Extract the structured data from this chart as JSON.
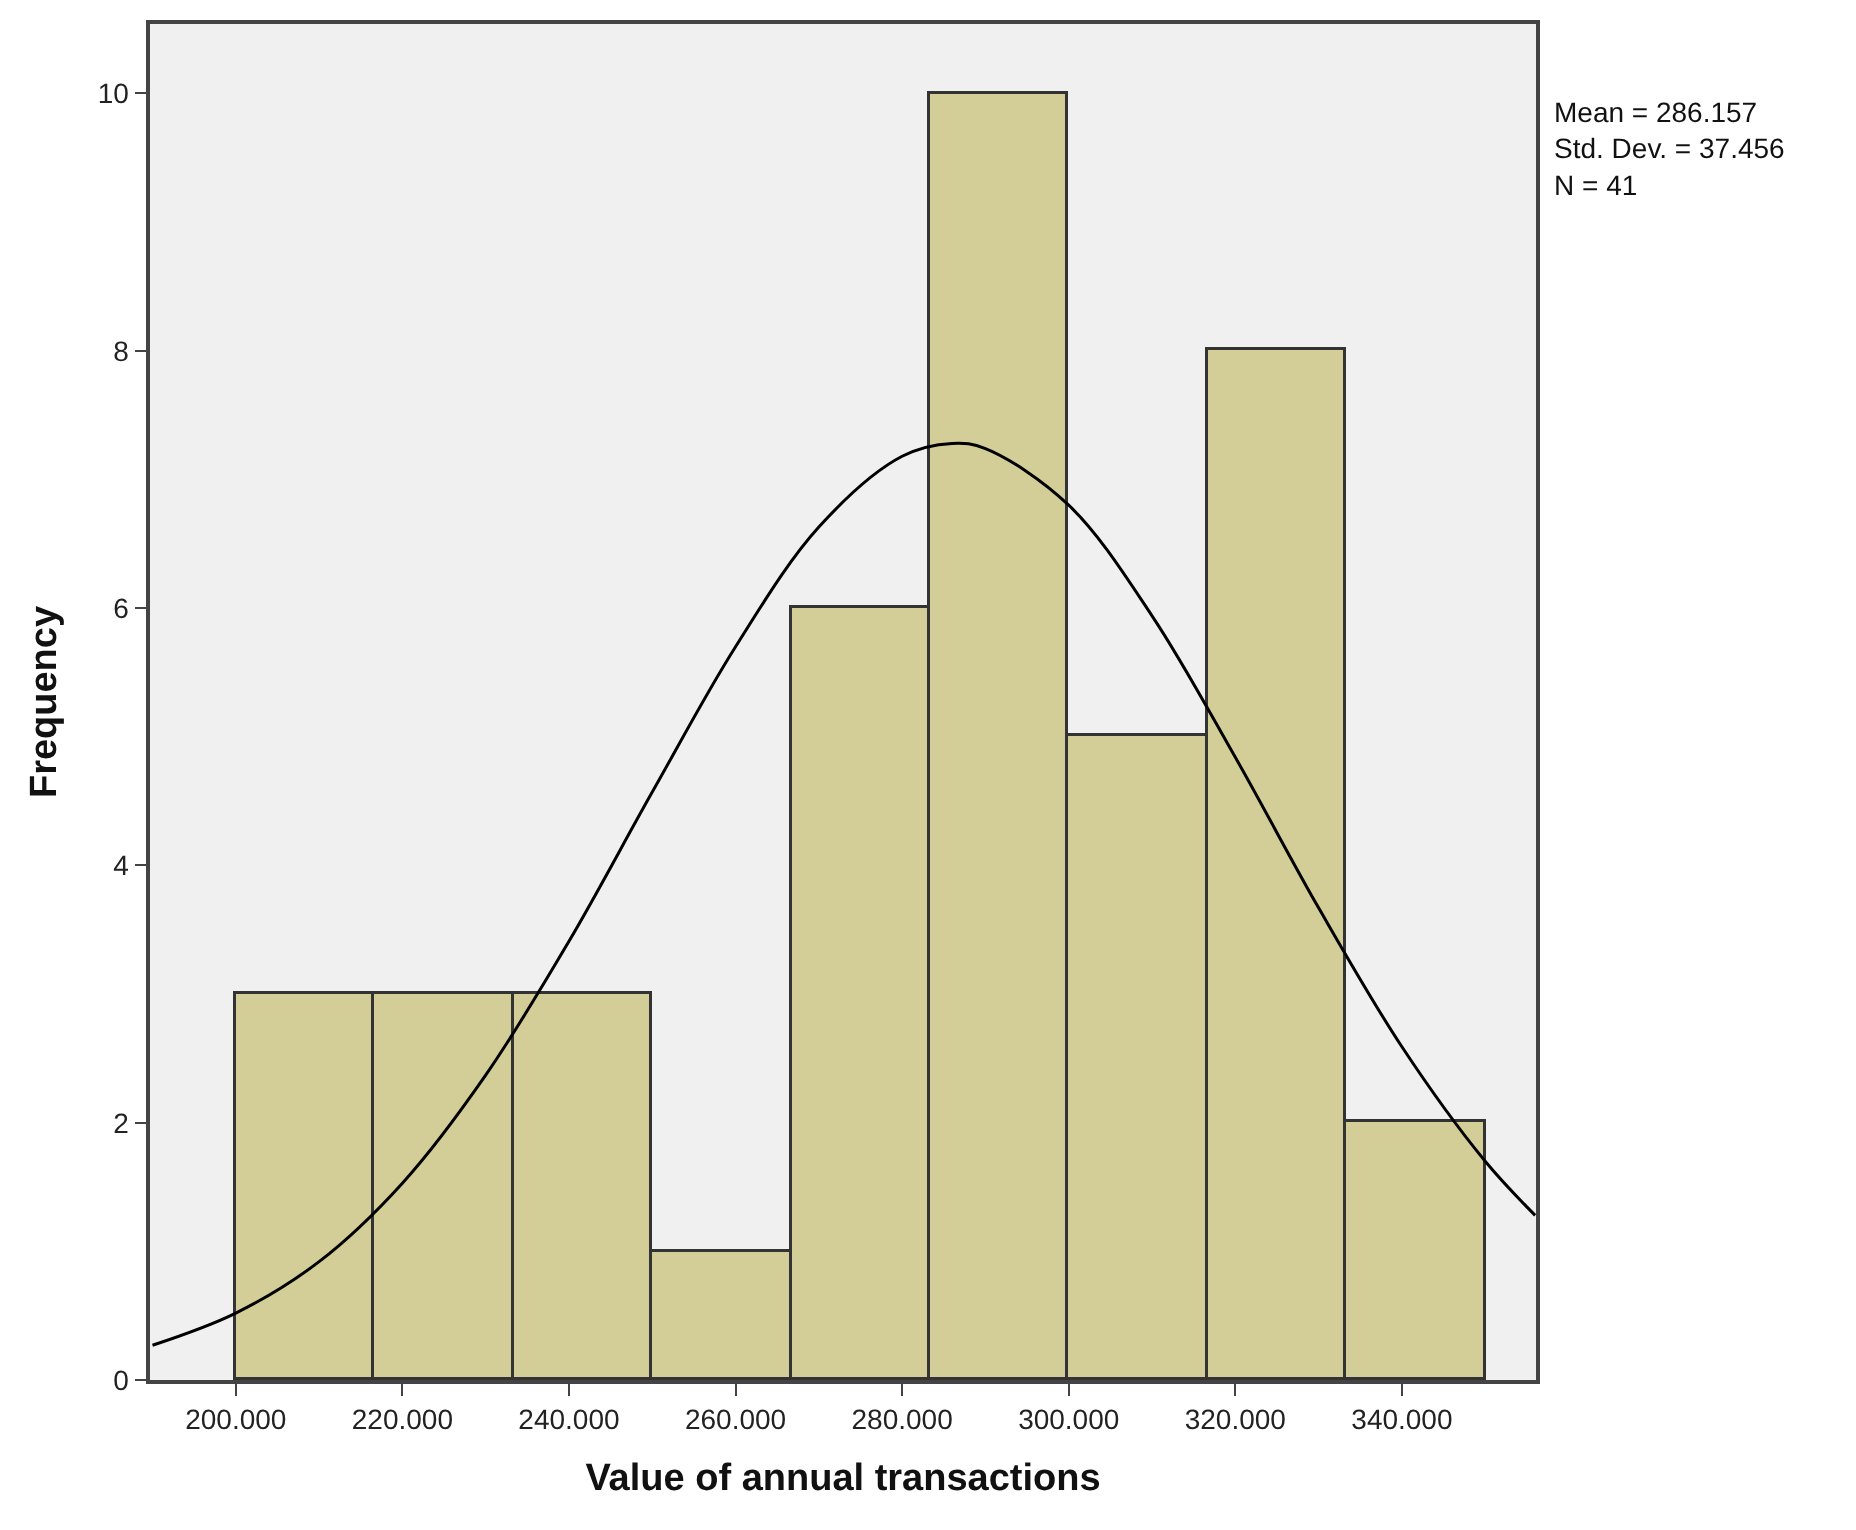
{
  "chart_data": {
    "type": "histogram",
    "xlabel": "Value of annual transactions",
    "ylabel": "Frequency",
    "annotations": [
      "Mean = 286.157\nStd. Dev. = 37.456\nN = 41"
    ],
    "bins": [
      200000,
      216667,
      233333,
      250000,
      266667,
      283333,
      300000,
      316667,
      333333,
      350000
    ],
    "series": [
      {
        "color": "#d3ce97",
        "values": [
          3,
          3,
          3,
          1,
          6,
          10,
          5,
          8,
          2
        ]
      },
      {
        "type": "line",
        "color": "#000000",
        "x": [
          190000,
          200000,
          210000,
          220000,
          230000,
          240000,
          250000,
          260000,
          270000,
          280000,
          286000,
          290000,
          300000,
          310000,
          320000,
          330000,
          340000,
          350000,
          356000
        ],
        "values": [
          0.27,
          0.52,
          0.92,
          1.53,
          2.37,
          3.41,
          4.57,
          5.7,
          6.63,
          7.18,
          7.28,
          7.24,
          6.8,
          5.94,
          4.84,
          3.67,
          2.59,
          1.7,
          1.28
        ]
      }
    ],
    "xlim": [
      189700,
      356100
    ],
    "ylim": [
      0,
      10.54
    ],
    "xticks": [
      {
        "value": 200000,
        "label": "200.000"
      },
      {
        "value": 220000,
        "label": "220.000"
      },
      {
        "value": 240000,
        "label": "240.000"
      },
      {
        "value": 260000,
        "label": "260.000"
      },
      {
        "value": 280000,
        "label": "280.000"
      },
      {
        "value": 300000,
        "label": "300.000"
      },
      {
        "value": 320000,
        "label": "320.000"
      },
      {
        "value": 340000,
        "label": "340.000"
      }
    ],
    "yticks": [
      0,
      2,
      4,
      6,
      8,
      10
    ],
    "grid": false
  }
}
